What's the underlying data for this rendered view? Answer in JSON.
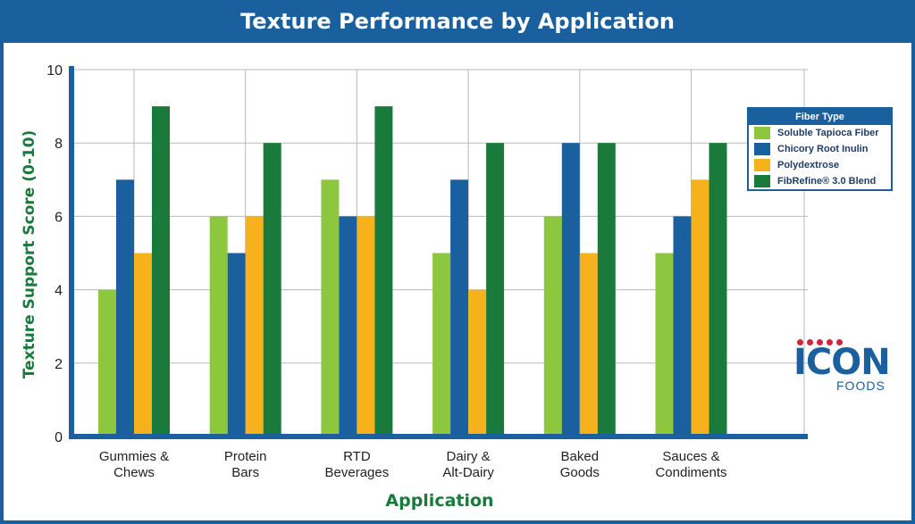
{
  "title": "Texture Performance by Application",
  "chart_data": {
    "type": "bar",
    "title": "Texture Performance by Application",
    "xlabel": "Application",
    "ylabel": "Texture Support Score (0-10)",
    "ylim": [
      0,
      10
    ],
    "yticks": [
      0,
      2,
      4,
      6,
      8,
      10
    ],
    "grid": true,
    "legend_position": "right",
    "legend_title": "Fiber Type",
    "categories": [
      [
        "Gummies &",
        "Chews"
      ],
      [
        "Protein",
        "Bars"
      ],
      [
        "RTD",
        "Beverages"
      ],
      [
        "Dairy &",
        "Alt-Dairy"
      ],
      [
        "Baked",
        "Goods"
      ],
      [
        "Sauces &",
        "Condiments"
      ]
    ],
    "series": [
      {
        "name": "Soluble Tapioca Fiber",
        "color": "#8dc63f",
        "values": [
          4,
          6,
          7,
          5,
          6,
          5
        ]
      },
      {
        "name": "Chicory Root Inulin",
        "color": "#1a5f9e",
        "values": [
          7,
          5,
          6,
          7,
          8,
          6
        ]
      },
      {
        "name": "Polydextrose",
        "color": "#f5b21a",
        "values": [
          5,
          6,
          6,
          4,
          5,
          7
        ]
      },
      {
        "name": "FibRefine® 3.0 Blend",
        "color": "#1a7a3c",
        "values": [
          9,
          8,
          9,
          8,
          8,
          8
        ]
      }
    ]
  },
  "logo": {
    "word": "ICON",
    "sub": "FOODS",
    "icon": "icon-foods-logo"
  }
}
